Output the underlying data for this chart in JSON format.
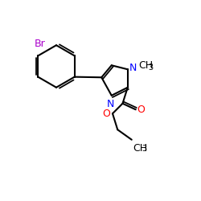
{
  "figsize": [
    2.5,
    2.5
  ],
  "dpi": 100,
  "background": "#ffffff",
  "bond_color": "#000000",
  "bond_lw": 1.5,
  "colors": {
    "Br": "#aa00cc",
    "N": "#0000ff",
    "O": "#ff0000",
    "C": "#000000"
  },
  "font_size": 9,
  "font_size_sub": 7
}
